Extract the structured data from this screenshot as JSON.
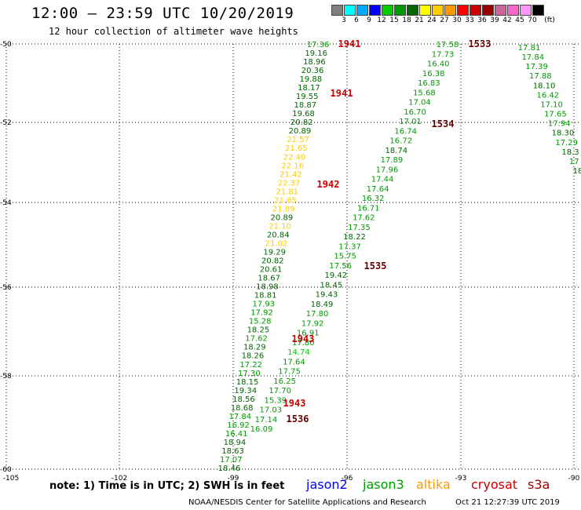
{
  "title": "12:00 — 23:59 UTC 10/20/2019",
  "subtitle": "12 hour collection of altimeter wave heights",
  "color_scale": {
    "unit": "(ft)",
    "colors": [
      "#7f7f7f",
      "#00ffff",
      "#00aaff",
      "#0000ff",
      "#00cc00",
      "#009900",
      "#006600",
      "#ffff00",
      "#ffcc00",
      "#ff9900",
      "#ff0000",
      "#cc0000",
      "#990000",
      "#cc6699",
      "#ff66cc",
      "#ff99ff",
      "#000000"
    ],
    "labels": [
      "3",
      "6",
      "9",
      "12",
      "15",
      "18",
      "21",
      "24",
      "27",
      "30",
      "33",
      "36",
      "39",
      "42",
      "45",
      "70"
    ]
  },
  "map": {
    "x_axis": {
      "min": -105,
      "max": -90,
      "ticks": [
        "-105",
        "-102",
        "-99",
        "-96",
        "-93",
        "-90"
      ]
    },
    "y_axis": {
      "ticks": [
        "-50",
        "-52",
        "-54",
        "-56",
        "-58",
        "-60"
      ]
    },
    "grid": "dotted"
  },
  "note": "note: 1) Time is in UTC; 2) SWH is in feet",
  "legend": [
    {
      "label": "jason2",
      "color": "#0000ff"
    },
    {
      "label": "jason3",
      "color": "#009900"
    },
    {
      "label": "altika",
      "color": "#ff9900"
    },
    {
      "label": "cryosat",
      "color": "#cc0000"
    },
    {
      "label": "s3a",
      "color": "#990000"
    }
  ],
  "footer": {
    "org": "NOAA/NESDIS Center for Satellite Applications and Research",
    "stamp": "Oct 21 12:27:39 UTC 2019"
  },
  "time_labels": [
    {
      "text": "1941",
      "color": "#cc0000"
    },
    {
      "text": "1941",
      "color": "#cc0000"
    },
    {
      "text": "1942",
      "color": "#cc0000"
    },
    {
      "text": "1943",
      "color": "#cc0000"
    },
    {
      "text": "1943",
      "color": "#cc0000"
    },
    {
      "text": "1533",
      "color": "#660000"
    },
    {
      "text": "1534",
      "color": "#660000"
    },
    {
      "text": "1535",
      "color": "#660000"
    },
    {
      "text": "1536",
      "color": "#660000"
    }
  ],
  "tracks": {
    "track_a": [
      [
        "17.36",
        "#009900"
      ],
      [
        "19.16",
        "#006600"
      ],
      [
        "18.96",
        "#006600"
      ],
      [
        "20.36",
        "#006600"
      ],
      [
        "19.88",
        "#006600"
      ],
      [
        "18.17",
        "#006600"
      ],
      [
        "19.55",
        "#006600"
      ],
      [
        "18.87",
        "#006600"
      ],
      [
        "19.68",
        "#006600"
      ],
      [
        "20.82",
        "#006600"
      ],
      [
        "20.89",
        "#006600"
      ],
      [
        "21.57",
        "#ffcc00"
      ],
      [
        "21.65",
        "#ffcc00"
      ],
      [
        "22.40",
        "#ffcc00"
      ],
      [
        "22.16",
        "#ffcc00"
      ],
      [
        "21.42",
        "#ffcc00"
      ],
      [
        "22.37",
        "#ffcc00"
      ],
      [
        "21.81",
        "#ffcc00"
      ],
      [
        "21.85",
        "#ffcc00"
      ],
      [
        "21.89",
        "#ffcc00"
      ],
      [
        "20.89",
        "#006600"
      ],
      [
        "21.10",
        "#ffcc00"
      ],
      [
        "20.84",
        "#006600"
      ],
      [
        "21.02",
        "#ffcc00"
      ],
      [
        "19.29",
        "#006600"
      ],
      [
        "20.82",
        "#006600"
      ],
      [
        "20.61",
        "#006600"
      ],
      [
        "18.67",
        "#006600"
      ],
      [
        "18.98",
        "#006600"
      ],
      [
        "18.81",
        "#006600"
      ],
      [
        "17.93",
        "#009900"
      ],
      [
        "17.92",
        "#009900"
      ],
      [
        "15.28",
        "#009900"
      ],
      [
        "18.25",
        "#006600"
      ],
      [
        "17.62",
        "#009900"
      ],
      [
        "18.29",
        "#006600"
      ],
      [
        "18.26",
        "#006600"
      ],
      [
        "17.22",
        "#009900"
      ],
      [
        "17.30",
        "#009900"
      ],
      [
        "18.15",
        "#006600"
      ],
      [
        "19.34",
        "#006600"
      ],
      [
        "18.56",
        "#006600"
      ],
      [
        "18.68",
        "#006600"
      ],
      [
        "17.84",
        "#009900"
      ],
      [
        "16.92",
        "#009900"
      ],
      [
        "16.41",
        "#009900"
      ],
      [
        "18.94",
        "#006600"
      ],
      [
        "18.63",
        "#006600"
      ],
      [
        "17.07",
        "#009900"
      ],
      [
        "18.46",
        "#006600"
      ]
    ],
    "track_b": [
      [
        "17.58",
        "#009900"
      ],
      [
        "17.73",
        "#009900"
      ],
      [
        "16.40",
        "#009900"
      ],
      [
        "16.38",
        "#009900"
      ],
      [
        "16.83",
        "#009900"
      ],
      [
        "15.68",
        "#009900"
      ],
      [
        "17.04",
        "#009900"
      ],
      [
        "16.70",
        "#009900"
      ],
      [
        "17.01",
        "#009900"
      ],
      [
        "16.74",
        "#009900"
      ],
      [
        "16.72",
        "#009900"
      ],
      [
        "18.74",
        "#006600"
      ],
      [
        "17.89",
        "#009900"
      ],
      [
        "17.96",
        "#009900"
      ],
      [
        "17.44",
        "#009900"
      ],
      [
        "17.64",
        "#009900"
      ],
      [
        "16.32",
        "#009900"
      ],
      [
        "16.71",
        "#009900"
      ],
      [
        "17.62",
        "#009900"
      ],
      [
        "17.35",
        "#009900"
      ],
      [
        "18.22",
        "#006600"
      ],
      [
        "17.37",
        "#009900"
      ],
      [
        "15.75",
        "#009900"
      ],
      [
        "17.56",
        "#009900"
      ],
      [
        "19.42",
        "#006600"
      ],
      [
        "18.45",
        "#006600"
      ],
      [
        "19.43",
        "#006600"
      ],
      [
        "18.49",
        "#006600"
      ],
      [
        "17.80",
        "#009900"
      ],
      [
        "17.92",
        "#009900"
      ],
      [
        "16.91",
        "#009900"
      ],
      [
        "17.80",
        "#009900"
      ],
      [
        "14.74",
        "#00cc00"
      ],
      [
        "17.64",
        "#009900"
      ],
      [
        "17.75",
        "#009900"
      ],
      [
        "16.25",
        "#009900"
      ],
      [
        "17.70",
        "#009900"
      ],
      [
        "15.39",
        "#009900"
      ],
      [
        "17.03",
        "#009900"
      ],
      [
        "17.14",
        "#009900"
      ],
      [
        "16.09",
        "#009900"
      ]
    ],
    "track_c": [
      [
        "17.81",
        "#009900"
      ],
      [
        "17.84",
        "#009900"
      ],
      [
        "17.39",
        "#009900"
      ],
      [
        "17.88",
        "#009900"
      ],
      [
        "18.10",
        "#006600"
      ],
      [
        "16.42",
        "#009900"
      ],
      [
        "17.10",
        "#009900"
      ],
      [
        "17.65",
        "#009900"
      ],
      [
        "17.94",
        "#009900"
      ],
      [
        "18.30",
        "#006600"
      ],
      [
        "17.29",
        "#009900"
      ],
      [
        "18.3",
        "#006600"
      ],
      [
        "17",
        "#009900"
      ],
      [
        "18",
        "#006600"
      ]
    ]
  }
}
